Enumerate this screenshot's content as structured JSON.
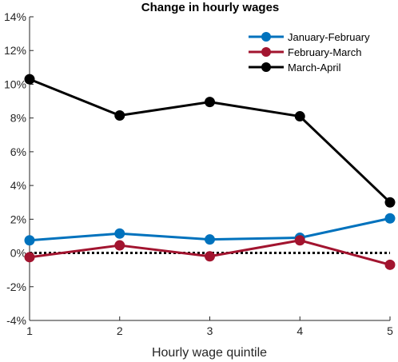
{
  "chart_data": {
    "type": "line",
    "title": "Change in hourly wages",
    "xlabel": "Hourly wage quintile",
    "ylabel": "",
    "x": [
      1,
      2,
      3,
      4,
      5
    ],
    "xlim": [
      1,
      5
    ],
    "ylim": [
      -4,
      14
    ],
    "yticks": [
      -4,
      -2,
      0,
      2,
      4,
      6,
      8,
      10,
      12,
      14
    ],
    "ytick_labels": [
      "-4%",
      "-2%",
      "0%",
      "2%",
      "4%",
      "6%",
      "8%",
      "10%",
      "12%",
      "14%"
    ],
    "xticks": [
      1,
      2,
      3,
      4,
      5
    ],
    "xtick_labels": [
      "1",
      "2",
      "3",
      "4",
      "5"
    ],
    "grid": false,
    "legend_position": "top-right",
    "reference_line": {
      "y": 0,
      "style": "dotted",
      "color": "#000000"
    },
    "series": [
      {
        "name": "January-February",
        "color": "#0072BD",
        "values": [
          0.75,
          1.15,
          0.8,
          0.9,
          2.05
        ]
      },
      {
        "name": "February-March",
        "color": "#A2142F",
        "values": [
          -0.25,
          0.45,
          -0.2,
          0.75,
          -0.7
        ]
      },
      {
        "name": "March-April",
        "color": "#000000",
        "values": [
          10.3,
          8.15,
          8.95,
          8.1,
          3.0
        ]
      }
    ]
  }
}
